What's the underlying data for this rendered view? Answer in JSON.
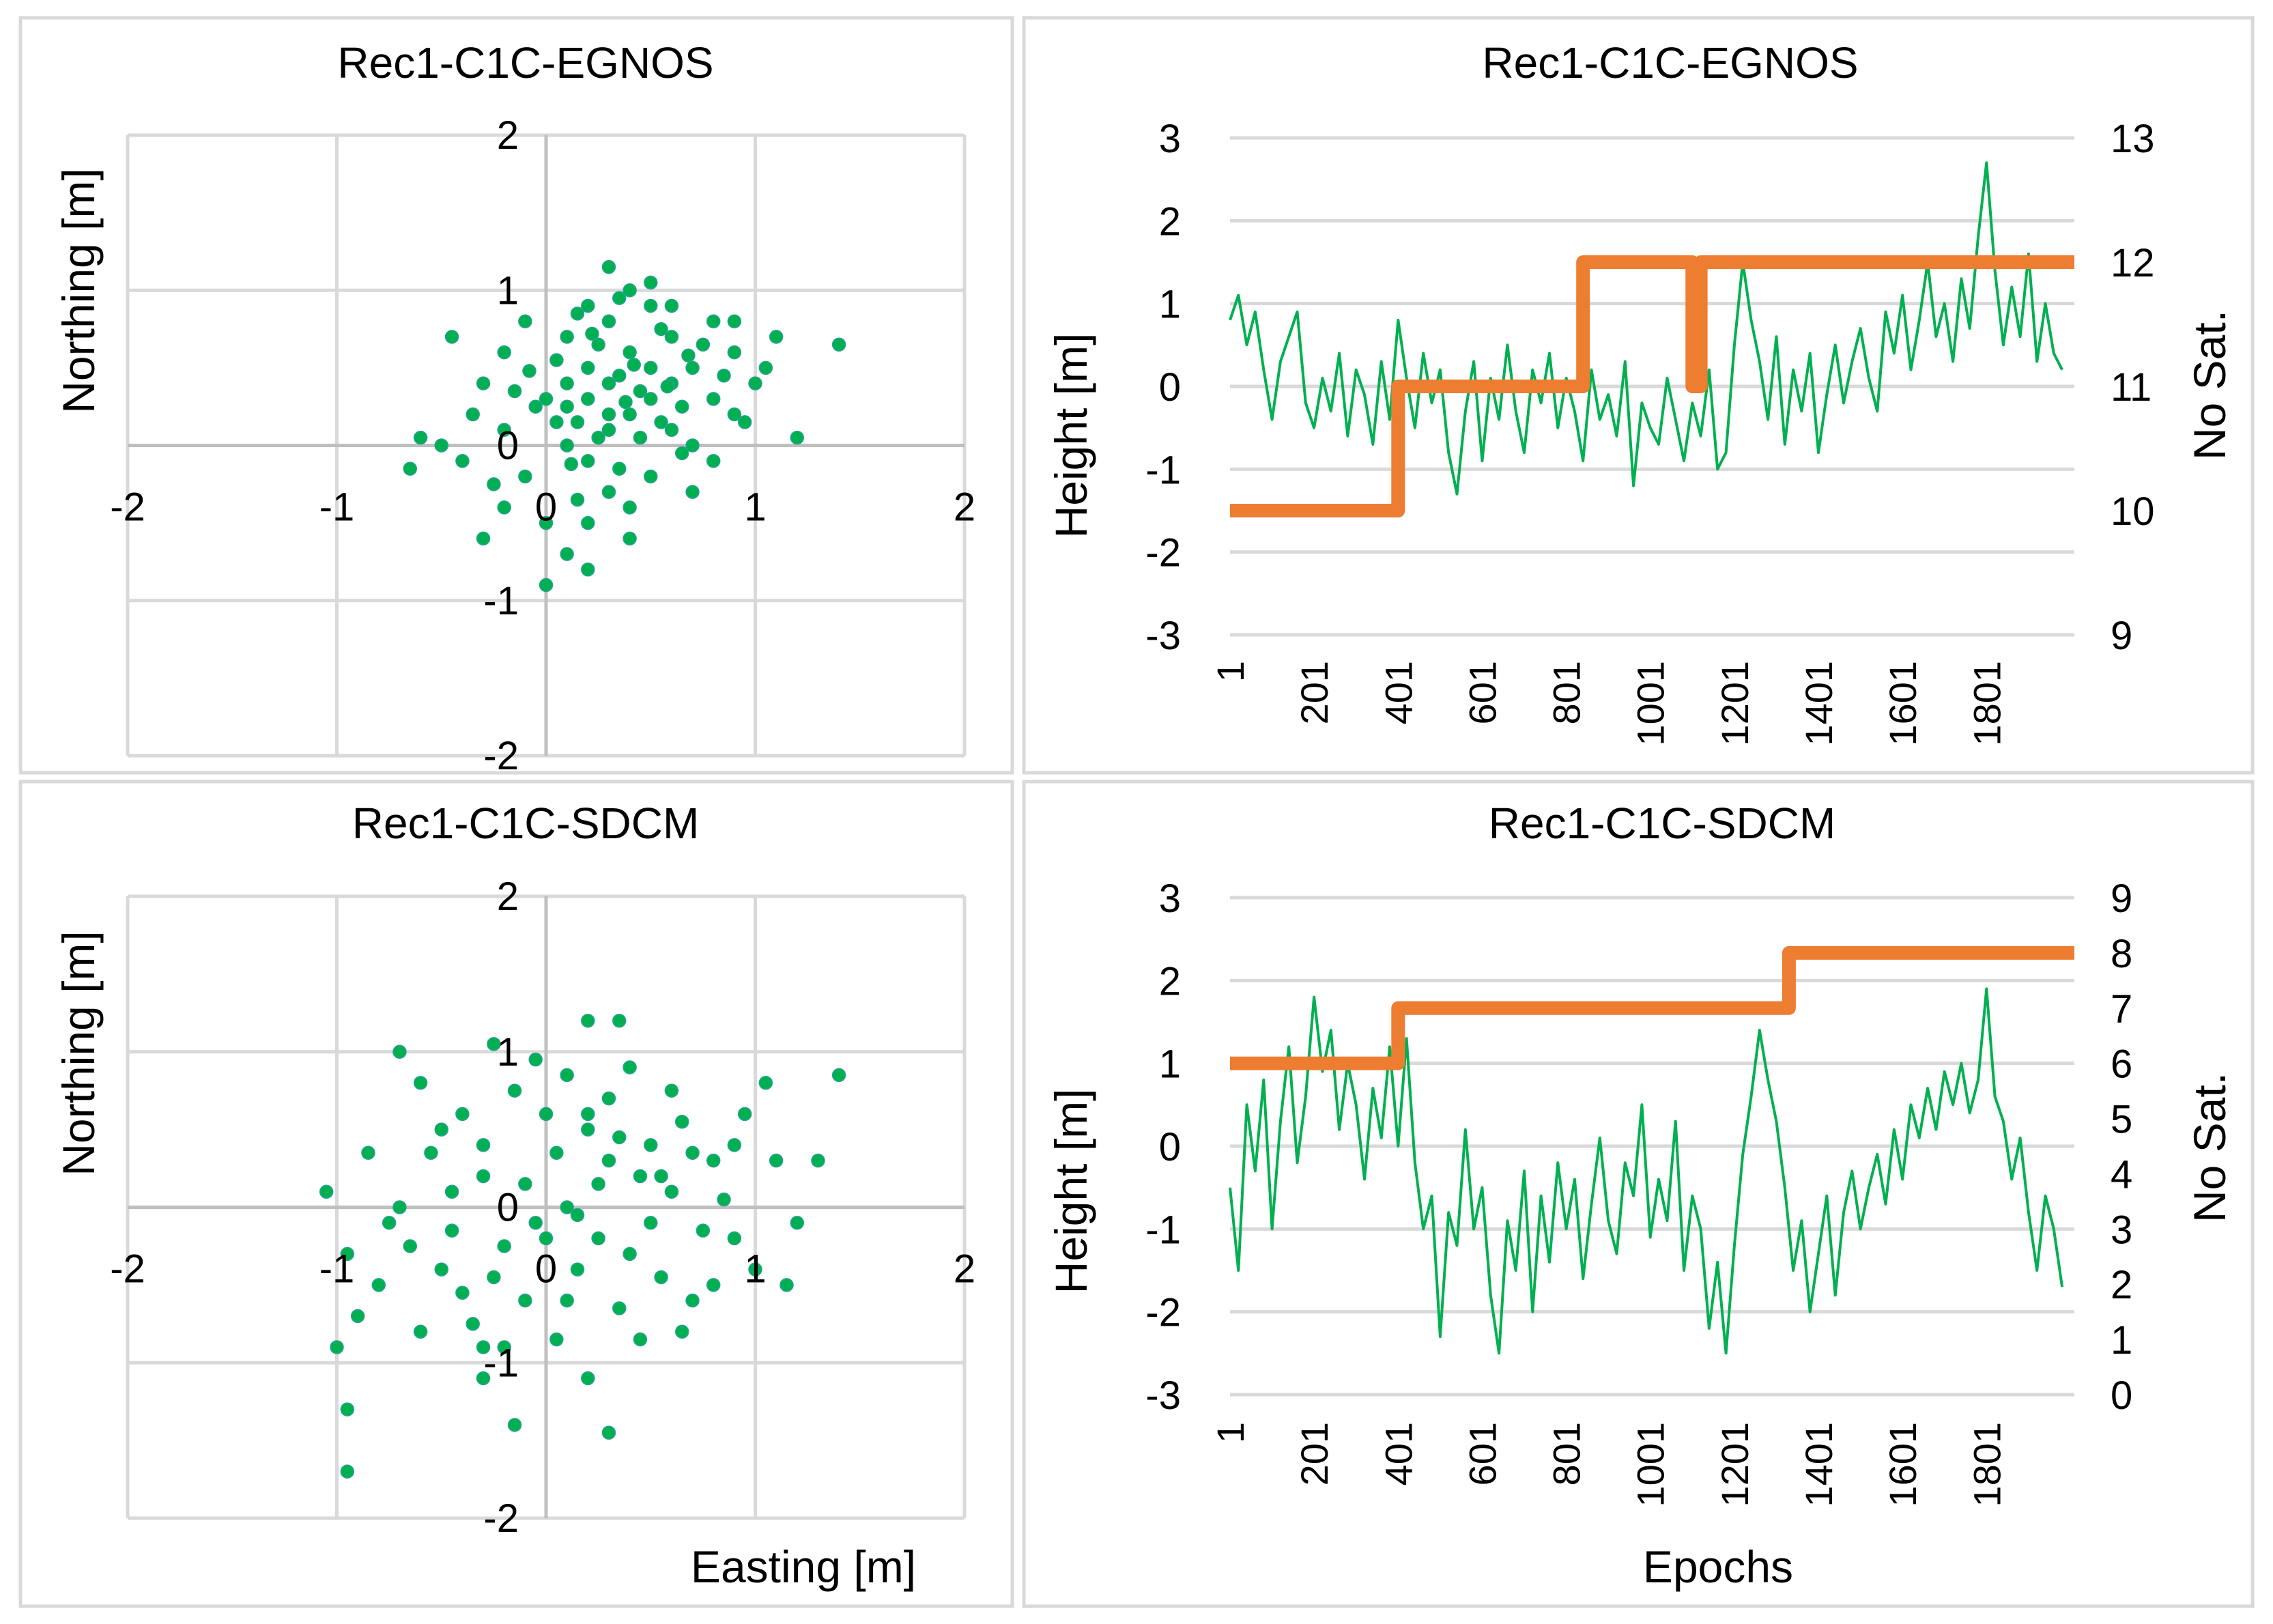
{
  "chart_data": [
    {
      "type": "scatter",
      "title": "Rec1-C1C-EGNOS",
      "xlabel": "",
      "ylabel": "Northing [m]",
      "xlim": [
        -2,
        2
      ],
      "ylim": [
        -2,
        2
      ],
      "xticks": [
        "-2",
        "-1",
        "0",
        "1",
        "2"
      ],
      "yticks": [
        "-2",
        "-1",
        "0",
        "1",
        "2"
      ],
      "grid": true,
      "marker_color": "#00b050",
      "points": [
        [
          0.3,
          0.2
        ],
        [
          0.1,
          0.4
        ],
        [
          0.5,
          0.3
        ],
        [
          -0.2,
          0.1
        ],
        [
          0.7,
          0.5
        ],
        [
          0.2,
          -0.1
        ],
        [
          0.4,
          0.6
        ],
        [
          0.0,
          0.3
        ],
        [
          0.6,
          0.1
        ],
        [
          0.3,
          0.8
        ],
        [
          -0.1,
          -0.2
        ],
        [
          0.8,
          0.3
        ],
        [
          0.2,
          0.5
        ],
        [
          0.5,
          -0.2
        ],
        [
          0.1,
          0.0
        ],
        [
          0.4,
          0.2
        ],
        [
          0.9,
          0.6
        ],
        [
          -0.3,
          0.4
        ],
        [
          0.6,
          0.7
        ],
        [
          0.3,
          -0.3
        ],
        [
          0.2,
          0.9
        ],
        [
          0.7,
          0.0
        ],
        [
          -0.4,
          -0.1
        ],
        [
          0.5,
          0.5
        ],
        [
          0.1,
          0.7
        ],
        [
          1.0,
          0.4
        ],
        [
          0.3,
          0.1
        ],
        [
          -0.2,
          0.6
        ],
        [
          0.4,
          -0.4
        ],
        [
          0.8,
          0.8
        ],
        [
          0.0,
          -0.5
        ],
        [
          0.6,
          0.4
        ],
        [
          0.2,
          0.3
        ],
        [
          -0.5,
          0.0
        ],
        [
          1.2,
          0.05
        ],
        [
          0.4,
          1.0
        ],
        [
          0.3,
          1.15
        ],
        [
          0.5,
          0.9
        ],
        [
          -0.3,
          -0.6
        ],
        [
          0.1,
          -0.7
        ],
        [
          0.0,
          -0.9
        ],
        [
          0.2,
          -0.8
        ],
        [
          1.4,
          0.65
        ],
        [
          1.1,
          0.7
        ],
        [
          -0.65,
          -0.15
        ],
        [
          -0.6,
          0.05
        ],
        [
          -0.45,
          0.7
        ],
        [
          0.9,
          0.2
        ],
        [
          0.7,
          -0.3
        ],
        [
          0.35,
          0.45
        ],
        [
          0.15,
          0.15
        ],
        [
          0.45,
          0.05
        ],
        [
          0.25,
          0.65
        ],
        [
          0.55,
          0.75
        ],
        [
          0.05,
          0.55
        ],
        [
          -0.05,
          0.25
        ],
        [
          0.65,
          0.25
        ],
        [
          0.85,
          0.45
        ],
        [
          0.35,
          -0.15
        ],
        [
          0.15,
          -0.35
        ],
        [
          -0.15,
          0.35
        ],
        [
          0.75,
          0.65
        ],
        [
          0.45,
          0.35
        ],
        [
          0.25,
          0.05
        ],
        [
          0.55,
          0.15
        ],
        [
          0.05,
          0.15
        ],
        [
          0.95,
          0.15
        ],
        [
          -0.25,
          -0.25
        ],
        [
          0.65,
          -0.05
        ],
        [
          0.35,
          0.95
        ],
        [
          0.15,
          0.85
        ],
        [
          -0.1,
          0.8
        ],
        [
          0.8,
          -0.1
        ],
        [
          0.4,
          -0.6
        ],
        [
          1.05,
          0.5
        ],
        [
          -0.35,
          0.2
        ],
        [
          0.6,
          0.9
        ],
        [
          0.2,
          -0.5
        ],
        [
          0.5,
          1.05
        ],
        [
          -0.2,
          -0.4
        ],
        [
          0.9,
          0.8
        ],
        [
          0.3,
          0.4
        ],
        [
          0.1,
          0.25
        ],
        [
          0.42,
          0.52
        ],
        [
          0.58,
          0.38
        ],
        [
          0.22,
          0.72
        ],
        [
          0.68,
          0.58
        ],
        [
          0.12,
          -0.12
        ],
        [
          -0.08,
          0.48
        ],
        [
          0.38,
          0.28
        ]
      ]
    },
    {
      "type": "line",
      "title": "Rec1-C1C-EGNOS",
      "xlabel": "",
      "ylabel": "Height [m]",
      "ylabel_right": "No Sat.",
      "xlim": [
        1,
        2010
      ],
      "ylim": [
        -3,
        3
      ],
      "ylim_right": [
        9,
        13
      ],
      "xticks": [
        "1",
        "201",
        "401",
        "601",
        "801",
        "1001",
        "1201",
        "1401",
        "1601",
        "1801"
      ],
      "yticks": [
        "-3",
        "-2",
        "-1",
        "0",
        "1",
        "2",
        "3"
      ],
      "yticks_right": [
        "9",
        "10",
        "11",
        "12",
        "13"
      ],
      "grid": true,
      "series": [
        {
          "axis": "left",
          "color": "#00b050",
          "x_start": 1,
          "x_step": 20,
          "values": [
            0.8,
            1.1,
            0.5,
            0.9,
            0.2,
            -0.4,
            0.3,
            0.6,
            0.9,
            -0.2,
            -0.5,
            0.1,
            -0.3,
            0.4,
            -0.6,
            0.2,
            -0.1,
            -0.7,
            0.3,
            -0.4,
            0.8,
            0.1,
            -0.5,
            0.4,
            -0.2,
            0.2,
            -0.8,
            -1.3,
            -0.3,
            0.3,
            -0.9,
            0.1,
            -0.4,
            0.5,
            -0.3,
            -0.8,
            0.2,
            -0.2,
            0.4,
            -0.5,
            0.1,
            -0.3,
            -0.9,
            0.2,
            -0.4,
            -0.1,
            -0.6,
            0.3,
            -1.2,
            -0.2,
            -0.5,
            -0.7,
            0.1,
            -0.4,
            -0.9,
            -0.2,
            -0.6,
            0.2,
            -1.0,
            -0.8,
            0.5,
            1.5,
            0.8,
            0.3,
            -0.4,
            0.6,
            -0.7,
            0.2,
            -0.3,
            0.4,
            -0.8,
            -0.1,
            0.5,
            -0.2,
            0.3,
            0.7,
            0.1,
            -0.3,
            0.9,
            0.4,
            1.1,
            0.2,
            0.8,
            1.5,
            0.6,
            1.0,
            0.3,
            1.3,
            0.7,
            1.8,
            2.7,
            1.4,
            0.5,
            1.2,
            0.6,
            1.6,
            0.3,
            1.0,
            0.4,
            0.2
          ]
        },
        {
          "axis": "right",
          "color": "#ed7d31",
          "step": true,
          "points": [
            [
              1,
              10
            ],
            [
              401,
              10
            ],
            [
              401,
              11
            ],
            [
              841,
              11
            ],
            [
              841,
              12
            ],
            [
              1101,
              12
            ],
            [
              1101,
              11
            ],
            [
              1121,
              11
            ],
            [
              1121,
              12
            ],
            [
              2010,
              12
            ]
          ]
        }
      ]
    },
    {
      "type": "scatter",
      "title": "Rec1-C1C-SDCM",
      "xlabel": "Easting [m]",
      "ylabel": "Northing [m]",
      "xlim": [
        -2,
        2
      ],
      "ylim": [
        -2,
        2
      ],
      "xticks": [
        "-2",
        "-1",
        "0",
        "1",
        "2"
      ],
      "yticks": [
        "-2",
        "-1",
        "0",
        "1",
        "2"
      ],
      "grid": true,
      "marker_color": "#00b050",
      "points": [
        [
          0.1,
          0.0
        ],
        [
          -0.3,
          0.2
        ],
        [
          0.4,
          -0.3
        ],
        [
          0.6,
          0.1
        ],
        [
          -0.5,
          -0.4
        ],
        [
          0.2,
          0.5
        ],
        [
          -0.1,
          -0.6
        ],
        [
          0.8,
          0.3
        ],
        [
          -0.7,
          0.0
        ],
        [
          0.3,
          0.7
        ],
        [
          0.0,
          -0.2
        ],
        [
          0.5,
          0.4
        ],
        [
          -0.4,
          0.6
        ],
        [
          0.9,
          -0.2
        ],
        [
          -0.2,
          -0.9
        ],
        [
          0.7,
          -0.6
        ],
        [
          -0.8,
          -0.5
        ],
        [
          0.2,
          1.2
        ],
        [
          0.35,
          1.2
        ],
        [
          -0.6,
          0.8
        ],
        [
          1.1,
          0.3
        ],
        [
          1.4,
          0.85
        ],
        [
          1.3,
          0.3
        ],
        [
          -1.05,
          0.1
        ],
        [
          -0.95,
          -0.3
        ],
        [
          -0.9,
          -0.7
        ],
        [
          -0.95,
          -1.3
        ],
        [
          -0.95,
          -1.7
        ],
        [
          -0.15,
          -1.4
        ],
        [
          0.3,
          -1.45
        ],
        [
          -0.3,
          -1.1
        ],
        [
          0.2,
          -1.1
        ],
        [
          -0.7,
          1.0
        ],
        [
          -0.3,
          0.4
        ],
        [
          0.45,
          0.2
        ],
        [
          0.15,
          -0.4
        ],
        [
          -0.45,
          -0.15
        ],
        [
          0.65,
          0.55
        ],
        [
          -0.25,
          -0.45
        ],
        [
          0.85,
          0.05
        ],
        [
          0.05,
          0.35
        ],
        [
          -0.65,
          -0.25
        ],
        [
          0.55,
          -0.45
        ],
        [
          0.25,
          0.15
        ],
        [
          -0.15,
          0.75
        ],
        [
          1.0,
          -0.4
        ],
        [
          -1.0,
          -0.9
        ],
        [
          0.95,
          0.6
        ],
        [
          0.75,
          -0.15
        ],
        [
          -0.55,
          0.35
        ],
        [
          0.35,
          -0.65
        ],
        [
          0.05,
          -0.85
        ],
        [
          -0.35,
          -0.75
        ],
        [
          0.6,
          0.75
        ],
        [
          -0.05,
          0.95
        ],
        [
          1.2,
          -0.1
        ],
        [
          -0.85,
          0.35
        ],
        [
          0.4,
          0.9
        ],
        [
          0.15,
          -0.05
        ],
        [
          -0.1,
          0.15
        ],
        [
          0.3,
          0.3
        ],
        [
          -0.2,
          -0.25
        ],
        [
          0.5,
          -0.1
        ],
        [
          0.7,
          0.35
        ],
        [
          -0.4,
          -0.55
        ],
        [
          0.1,
          -0.6
        ],
        [
          0.9,
          0.4
        ],
        [
          -0.75,
          -0.1
        ],
        [
          0.2,
          0.6
        ],
        [
          -0.5,
          0.5
        ],
        [
          1.05,
          0.8
        ],
        [
          -0.3,
          -0.9
        ],
        [
          0.45,
          -0.85
        ],
        [
          0.0,
          0.6
        ],
        [
          -0.6,
          -0.8
        ],
        [
          0.8,
          -0.5
        ],
        [
          1.15,
          -0.5
        ],
        [
          -0.25,
          1.05
        ],
        [
          0.65,
          -0.8
        ],
        [
          0.1,
          0.85
        ],
        [
          -0.05,
          -0.1
        ],
        [
          0.25,
          -0.2
        ],
        [
          0.55,
          0.2
        ],
        [
          -0.45,
          0.1
        ],
        [
          0.35,
          0.45
        ]
      ]
    },
    {
      "type": "line",
      "title": "Rec1-C1C-SDCM",
      "xlabel": "Epochs",
      "ylabel": "Height [m]",
      "ylabel_right": "No Sat.",
      "xlim": [
        1,
        2010
      ],
      "ylim": [
        -3,
        3
      ],
      "ylim_right": [
        0,
        9
      ],
      "xticks": [
        "1",
        "201",
        "401",
        "601",
        "801",
        "1001",
        "1201",
        "1401",
        "1601",
        "1801"
      ],
      "yticks": [
        "-3",
        "-2",
        "-1",
        "0",
        "1",
        "2",
        "3"
      ],
      "yticks_right": [
        "0",
        "1",
        "2",
        "3",
        "4",
        "5",
        "6",
        "7",
        "8",
        "9"
      ],
      "grid": true,
      "series": [
        {
          "axis": "left",
          "color": "#00b050",
          "x_start": 1,
          "x_step": 20,
          "values": [
            -0.5,
            -1.5,
            0.5,
            -0.3,
            0.8,
            -1.0,
            0.3,
            1.2,
            -0.2,
            0.6,
            1.8,
            0.9,
            1.4,
            0.2,
            1.0,
            0.5,
            -0.4,
            0.7,
            0.1,
            1.2,
            0.0,
            1.3,
            -0.2,
            -1.0,
            -0.6,
            -2.3,
            -0.8,
            -1.2,
            0.2,
            -1.0,
            -0.5,
            -1.8,
            -2.5,
            -0.9,
            -1.5,
            -0.3,
            -2.0,
            -0.6,
            -1.4,
            -0.2,
            -1.0,
            -0.4,
            -1.6,
            -0.7,
            0.1,
            -0.9,
            -1.3,
            -0.2,
            -0.6,
            0.5,
            -1.1,
            -0.4,
            -0.9,
            0.3,
            -1.5,
            -0.6,
            -1.0,
            -2.2,
            -1.4,
            -2.5,
            -1.2,
            -0.1,
            0.6,
            1.4,
            0.8,
            0.3,
            -0.5,
            -1.5,
            -0.9,
            -2.0,
            -1.3,
            -0.6,
            -1.8,
            -0.8,
            -0.3,
            -1.0,
            -0.5,
            -0.1,
            -0.7,
            0.2,
            -0.4,
            0.5,
            0.1,
            0.7,
            0.2,
            0.9,
            0.5,
            1.0,
            0.4,
            0.8,
            1.9,
            0.6,
            0.3,
            -0.4,
            0.1,
            -0.8,
            -1.5,
            -0.6,
            -1.0,
            -1.7
          ]
        },
        {
          "axis": "right",
          "color": "#ed7d31",
          "step": true,
          "points": [
            [
              1,
              6
            ],
            [
              401,
              6
            ],
            [
              401,
              7
            ],
            [
              1331,
              7
            ],
            [
              1331,
              8
            ],
            [
              2010,
              8
            ]
          ]
        }
      ]
    }
  ]
}
